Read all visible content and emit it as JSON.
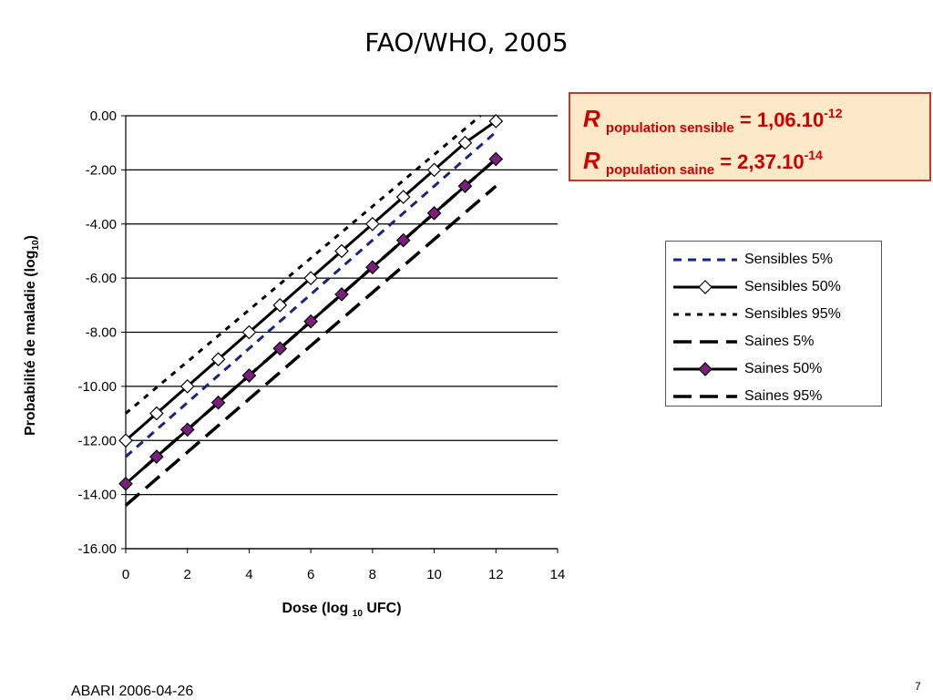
{
  "slide": {
    "title": "FAO/WHO, 2005",
    "footer": "ABARI 2006-04-26",
    "page_number": "7"
  },
  "r_box": {
    "line1": {
      "symbol": "R",
      "subscript": "population sensible",
      "equals": "= 1,06.10",
      "exponent": "-12"
    },
    "line2": {
      "symbol": "R",
      "subscript": "population saine",
      "equals": "= 2,37.10",
      "exponent": "-14"
    }
  },
  "colors": {
    "r_box_border": "#c0392b",
    "r_box_background": "#fde9c8",
    "r_text": "#cc0000",
    "sensibles_5_dash": "#1a237e",
    "saines_50_marker": "#7b1f7f",
    "line": "#000000"
  },
  "chart_data": {
    "type": "line",
    "xlabel": "Dose (log 10 UFC)",
    "ylabel": "Probabilité de maladie (log10)",
    "xlim": [
      0,
      14
    ],
    "ylim": [
      -16,
      0
    ],
    "x_ticks": [
      "0",
      "2",
      "4",
      "6",
      "8",
      "10",
      "12",
      "14"
    ],
    "y_ticks": [
      "0.00",
      "-2.00",
      "-4.00",
      "-6.00",
      "-8.00",
      "-10.00",
      "-12.00",
      "-14.00",
      "-16.00"
    ],
    "grid": "horizontal",
    "legend_position": "right",
    "series": [
      {
        "name": "Sensibles 5%",
        "style": "short-dash",
        "x": [
          0,
          12
        ],
        "y": [
          -12.6,
          -0.6
        ]
      },
      {
        "name": "Sensibles 50%",
        "style": "solid-open-diamond",
        "x": [
          0,
          1,
          2,
          3,
          4,
          5,
          6,
          7,
          8,
          9,
          10,
          11,
          12
        ],
        "y": [
          -12,
          -11,
          -10,
          -9,
          -8,
          -7,
          -6,
          -5,
          -4,
          -3,
          -2,
          -1,
          -0.2
        ]
      },
      {
        "name": "Sensibles 95%",
        "style": "dotted",
        "x": [
          0,
          11.5
        ],
        "y": [
          -11.0,
          0
        ]
      },
      {
        "name": "Saines  5%",
        "style": "long-dash",
        "x": [
          0,
          12
        ],
        "y": [
          -14.4,
          -2.6
        ]
      },
      {
        "name": "Saines 50%",
        "style": "solid-filled-diamond",
        "x": [
          0,
          1,
          2,
          3,
          4,
          5,
          6,
          7,
          8,
          9,
          10,
          11,
          12
        ],
        "y": [
          -13.6,
          -12.6,
          -11.6,
          -10.6,
          -9.6,
          -8.6,
          -7.6,
          -6.6,
          -5.6,
          -4.6,
          -3.6,
          -2.6,
          -1.6
        ]
      },
      {
        "name": "Saines 95%",
        "style": "long-dash",
        "x": [
          0.6,
          12
        ],
        "y": [
          -13.0,
          -1.6
        ]
      }
    ]
  }
}
